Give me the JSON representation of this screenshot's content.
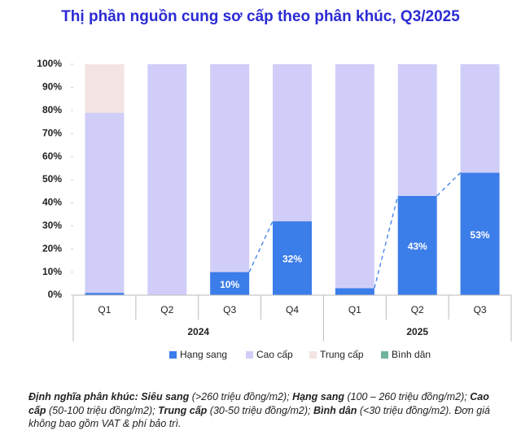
{
  "chart_data": {
    "type": "stacked_bar_100",
    "title": "Thị phần nguồn cung sơ cấp theo phân khúc, Q3/2025",
    "groups": [
      {
        "name": "2024",
        "categories": [
          "Q1",
          "Q2",
          "Q3",
          "Q4"
        ]
      },
      {
        "name": "2025",
        "categories": [
          "Q1",
          "Q2",
          "Q3"
        ]
      }
    ],
    "series": [
      {
        "name": "Hạng sang",
        "color": "#3b7de9",
        "values": [
          1,
          0,
          10,
          32,
          3,
          43,
          53
        ],
        "value_labels": [
          null,
          null,
          "10%",
          "32%",
          null,
          "43%",
          "53%"
        ]
      },
      {
        "name": "Cao cấp",
        "color": "#d0cef8",
        "values": [
          78,
          100,
          90,
          68,
          97,
          57,
          47
        ]
      },
      {
        "name": "Trung cấp",
        "color": "#f3e3e3",
        "values": [
          21,
          0,
          0,
          0,
          0,
          0,
          0
        ]
      },
      {
        "name": "Bình dân",
        "color": "#6fb49b",
        "values": [
          0,
          0,
          0,
          0,
          0,
          0,
          0
        ]
      }
    ],
    "ylim": [
      0,
      100
    ],
    "yticks": [
      {
        "value": 0,
        "label": "0%"
      },
      {
        "value": 10,
        "label": "10%"
      },
      {
        "value": 20,
        "label": "20%"
      },
      {
        "value": 30,
        "label": "30%"
      },
      {
        "value": 40,
        "label": "40%"
      },
      {
        "value": 50,
        "label": "50%"
      },
      {
        "value": 60,
        "label": "60%"
      },
      {
        "value": 70,
        "label": "70%"
      },
      {
        "value": 80,
        "label": "80%"
      },
      {
        "value": 90,
        "label": "90%"
      },
      {
        "value": 100,
        "label": "100%"
      }
    ],
    "grid": false,
    "connectors": true,
    "legend": "bottom",
    "footnote": [
      {
        "text": "Định nghĩa phân khúc: Siêu sang",
        "bold": true
      },
      {
        "text": " (>260 triệu đồng/m2); ",
        "bold": false
      },
      {
        "text": "Hạng sang",
        "bold": true
      },
      {
        "text": " (100 – 260 triệu đồng/m2); ",
        "bold": false
      },
      {
        "text": "Cao cấp",
        "bold": true
      },
      {
        "text": " (50-100 triệu đồng/m2); ",
        "bold": false
      },
      {
        "text": "Trung cấp",
        "bold": true
      },
      {
        "text": " (30-50 triệu đồng/m2); ",
        "bold": false
      },
      {
        "text": "Bình dân",
        "bold": true
      },
      {
        "text": " (<30 triệu đồng/m2). Đơn giá không bao gồm VAT & phí bảo trì.",
        "bold": false
      }
    ]
  }
}
